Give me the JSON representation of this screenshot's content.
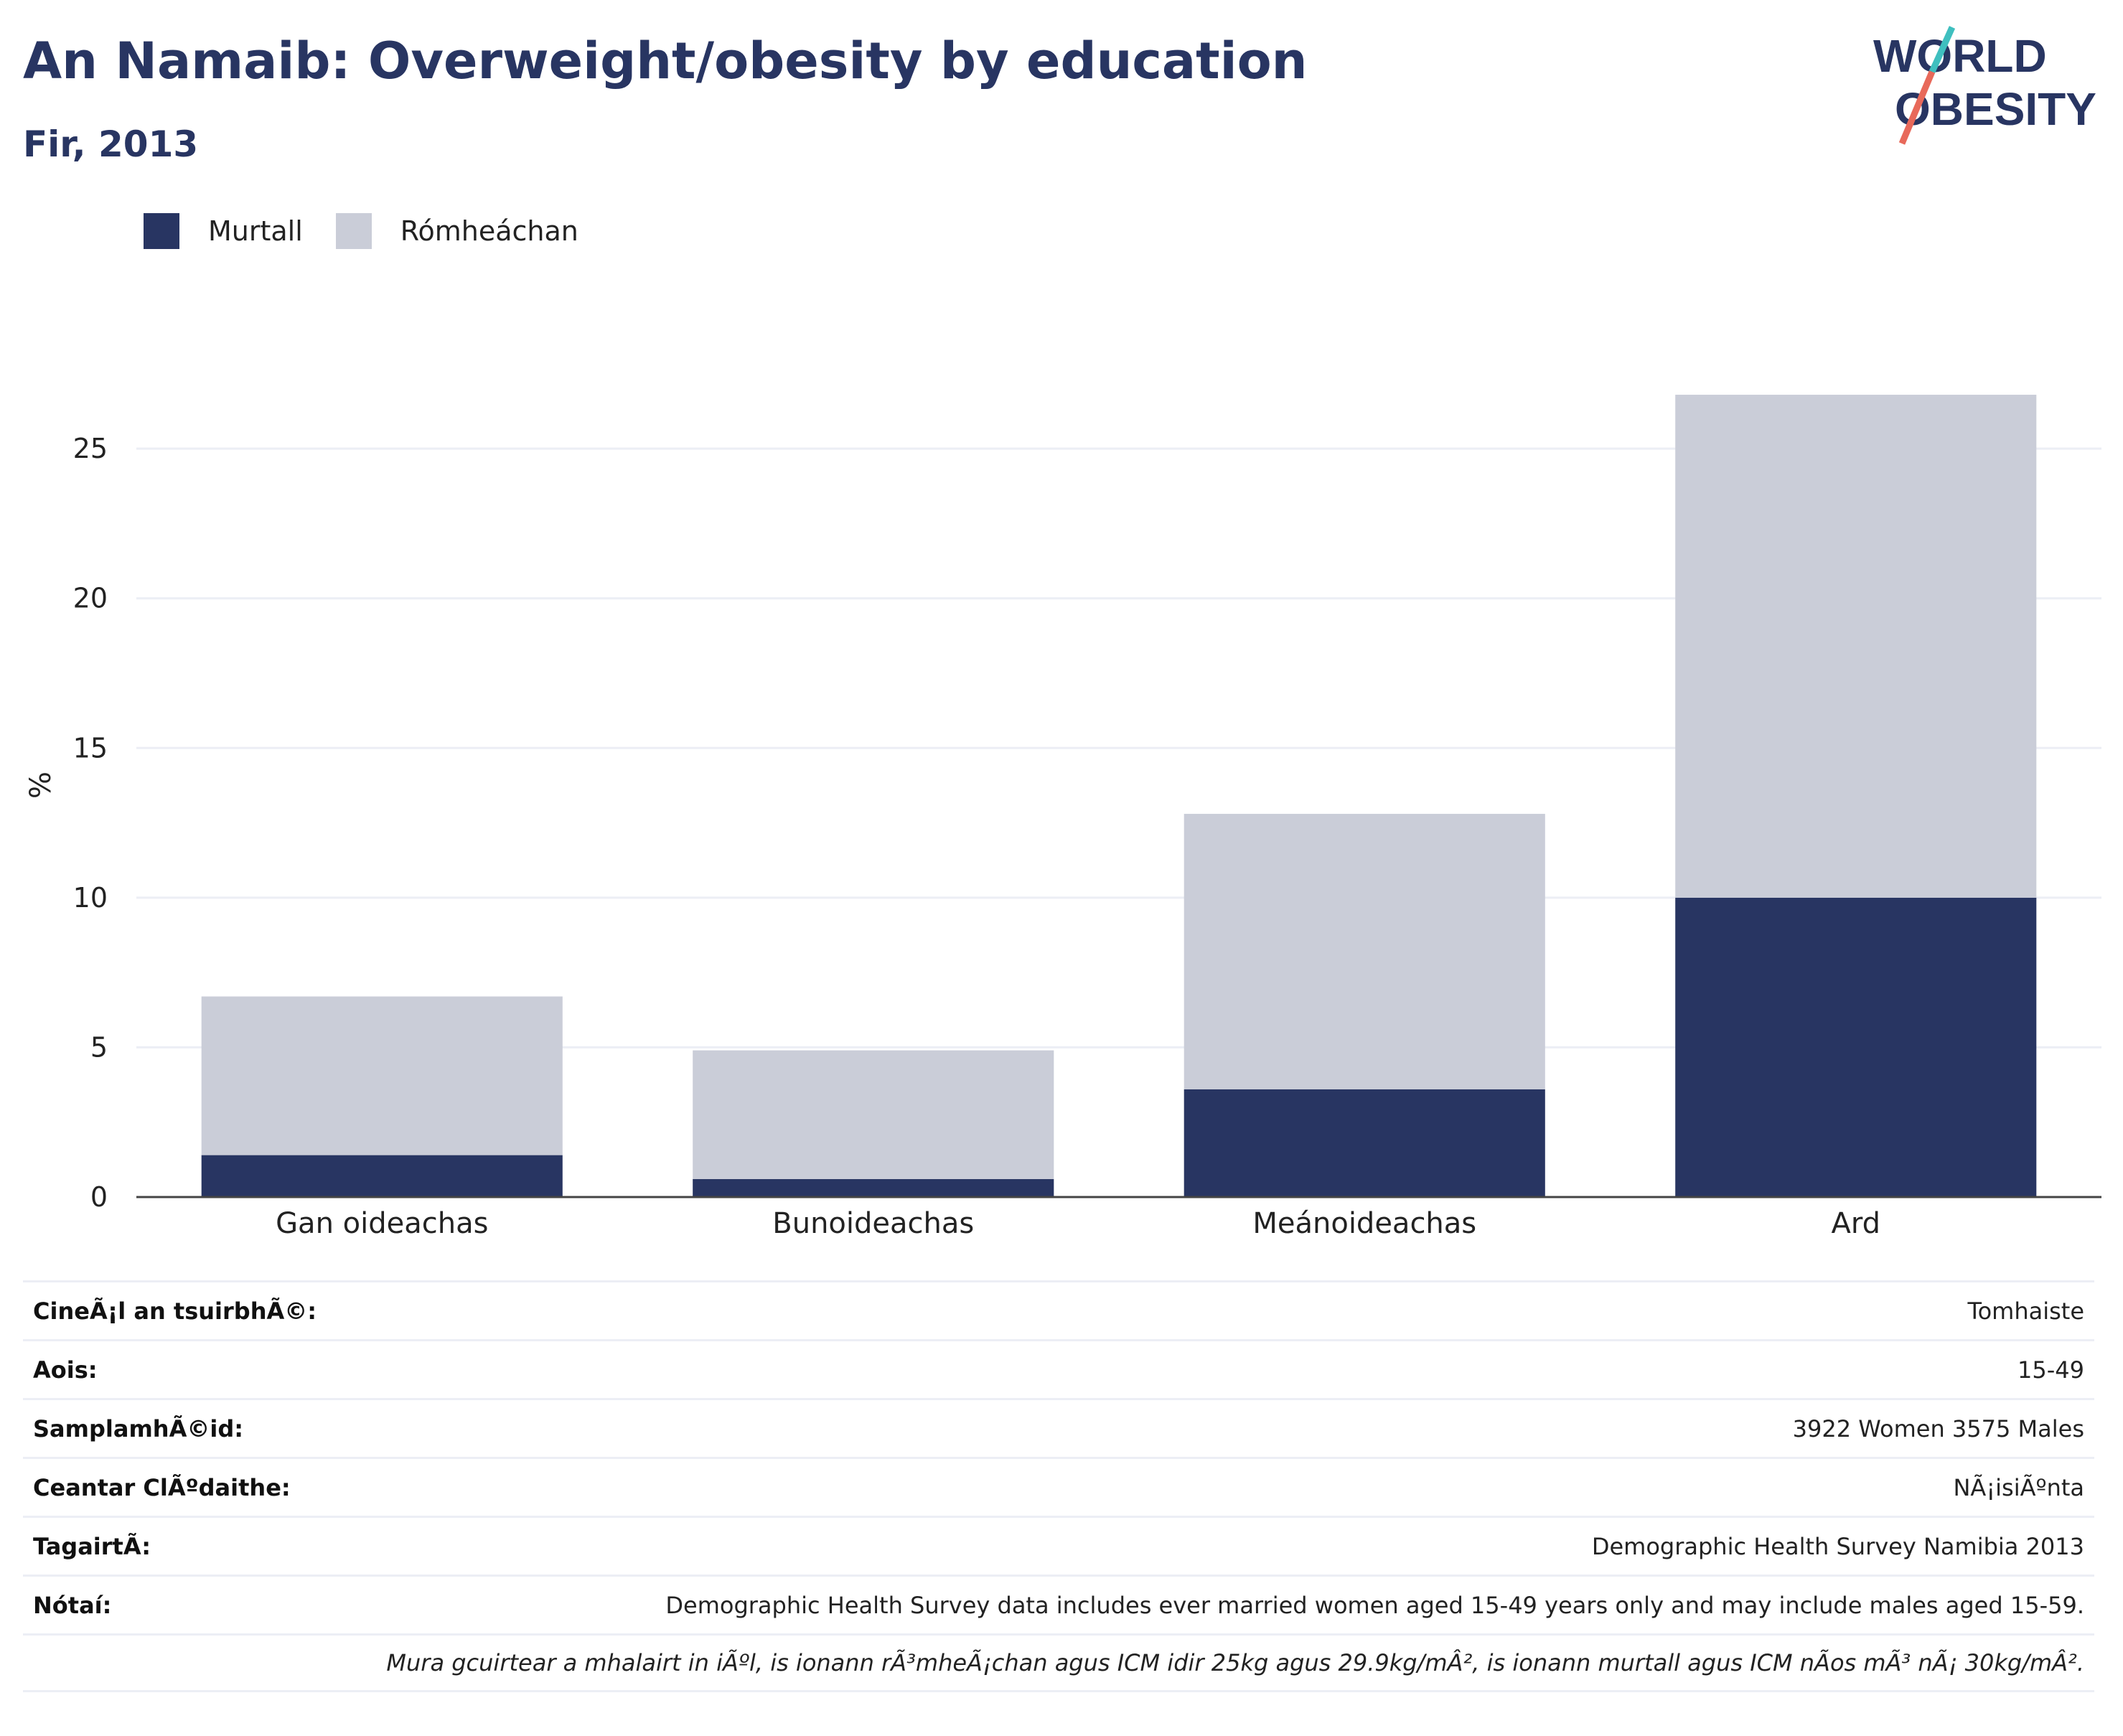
{
  "header": {
    "title": "An Namaib: Overweight/obesity by education",
    "subtitle": "Fir, 2013"
  },
  "logo": {
    "line1": "WORLD",
    "line2": "OBESITY"
  },
  "colors": {
    "obese": "#283562",
    "overweight": "#cacdd8",
    "brand": "#283562",
    "accent_teal": "#3fbfbf",
    "accent_red": "#e8695a"
  },
  "chart_data": {
    "type": "bar",
    "stacked": true,
    "categories": [
      "Gan oideachas",
      "Bunoideachas",
      "Meánoideachas",
      "Ard"
    ],
    "series": [
      {
        "name": "Murtall",
        "values": [
          1.4,
          0.6,
          3.6,
          10.0
        ]
      },
      {
        "name": "Rómheáchan",
        "values": [
          5.3,
          4.3,
          9.2,
          16.8
        ]
      }
    ],
    "ylabel": "%",
    "xlabel": "",
    "ylim": [
      0,
      28
    ],
    "yticks": [
      0,
      5,
      10,
      15,
      20,
      25
    ],
    "grid": true,
    "legend": "top-left"
  },
  "meta": [
    {
      "key": "CineÃ¡l an tsuirbhÃ©:",
      "value": "Tomhaiste"
    },
    {
      "key": "Aois:",
      "value": "15-49"
    },
    {
      "key": "SamplamhÃ©id:",
      "value": "3922 Women 3575 Males"
    },
    {
      "key": "Ceantar ClÃºdaithe:",
      "value": "NÃ¡isiÃºnta"
    },
    {
      "key": "TagairtÃ:",
      "value": "Demographic Health Survey Namibia 2013"
    },
    {
      "key": "Nótaí:",
      "value": "Demographic Health Survey data includes ever married women aged 15-49 years only and may include males aged 15-59."
    },
    {
      "key": "",
      "value": "Mura gcuirtear a mhalairt in iÃºl, is ionann rÃ³mheÃ¡chan agus ICM idir 25kg agus 29.9kg/mÂ², is ionann murtall agus ICM nÃos mÃ³ nÃ¡ 30kg/mÂ²."
    }
  ]
}
